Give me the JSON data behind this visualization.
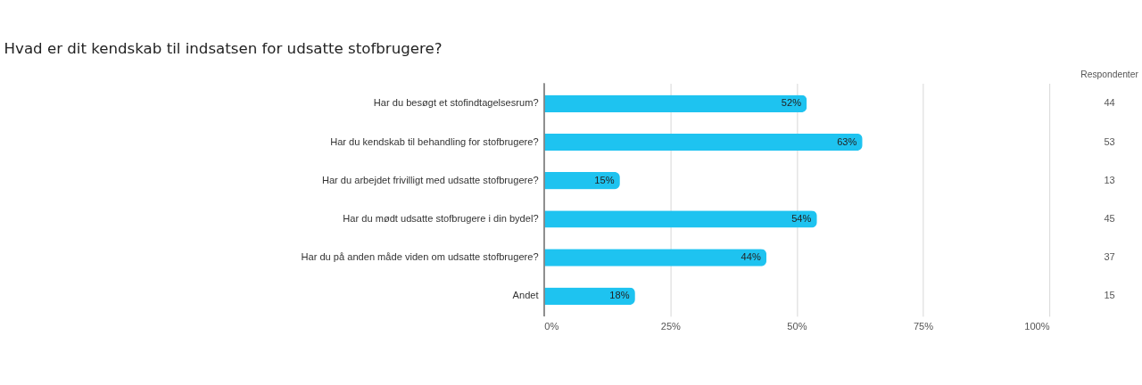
{
  "chart_data": {
    "type": "bar",
    "orientation": "horizontal",
    "title": "Hvad er dit kendskab til indsatsen for udsatte stofbrugere?",
    "categories": [
      "Har du besøgt et stofindtagelsesrum?",
      "Har du kendskab til behandling for stofbrugere?",
      "Har du arbejdet frivilligt med udsatte stofbrugere?",
      "Har du mødt udsatte stofbrugere i din bydel?",
      "Har du på anden måde viden om udsatte stofbrugere?",
      "Andet"
    ],
    "values": [
      52,
      63,
      15,
      54,
      44,
      18
    ],
    "value_labels": [
      "52%",
      "63%",
      "15%",
      "54%",
      "44%",
      "18%"
    ],
    "color": "#1ec3f0",
    "xlim": [
      0,
      100
    ],
    "xticks": [
      {
        "value": 0,
        "label": "0%"
      },
      {
        "value": 25,
        "label": "25%"
      },
      {
        "value": 50,
        "label": "50%"
      },
      {
        "value": 75,
        "label": "75%"
      },
      {
        "value": 100,
        "label": "100%"
      }
    ],
    "grid": "x",
    "annotations": [
      "Respondenter",
      "44",
      "53",
      "13",
      "45",
      "37",
      "15"
    ]
  }
}
